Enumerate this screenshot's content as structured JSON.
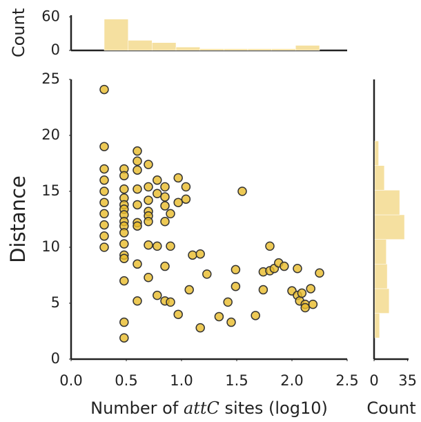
{
  "chart_data": [
    {
      "type": "histogram",
      "orientation": "vertical",
      "ylabel": "Count",
      "color": "#f5e0a0",
      "bins": [
        0.3,
        0.517,
        0.733,
        0.95,
        1.167,
        1.383,
        1.6,
        1.817,
        2.033,
        2.25
      ],
      "values": [
        56,
        18,
        14,
        6,
        3,
        3,
        3,
        3,
        9
      ],
      "xlim": [
        0,
        2.5
      ],
      "ylim": [
        0,
        63
      ],
      "yticks": [
        0,
        60
      ]
    },
    {
      "type": "scatter",
      "xlabel_parts": [
        "Number of ",
        "attC",
        " sites (log10)"
      ],
      "ylabel": "Distance",
      "color": "#e8bc2a",
      "edgecolor": "#333333",
      "x": [
        0.3,
        0.3,
        0.3,
        0.3,
        0.3,
        0.3,
        0.3,
        0.3,
        0.3,
        0.3,
        0.48,
        0.48,
        0.48,
        0.48,
        0.48,
        0.48,
        0.48,
        0.48,
        0.48,
        0.48,
        0.48,
        0.48,
        0.48,
        0.48,
        0.48,
        0.48,
        0.6,
        0.6,
        0.6,
        0.6,
        0.6,
        0.6,
        0.6,
        0.6,
        0.6,
        0.7,
        0.7,
        0.7,
        0.7,
        0.7,
        0.7,
        0.7,
        0.7,
        0.78,
        0.78,
        0.78,
        0.78,
        0.85,
        0.85,
        0.85,
        0.85,
        0.85,
        0.85,
        0.9,
        0.9,
        0.9,
        0.97,
        0.97,
        0.97,
        1.04,
        1.04,
        1.07,
        1.1,
        1.17,
        1.17,
        1.23,
        1.34,
        1.42,
        1.45,
        1.49,
        1.49,
        1.55,
        1.67,
        1.74,
        1.74,
        1.8,
        1.8,
        1.84,
        1.88,
        1.93,
        2.0,
        2.05,
        2.05,
        2.07,
        2.09,
        2.12,
        2.12,
        2.17,
        2.19,
        2.25
      ],
      "values": [
        24.1,
        19,
        17,
        16,
        15,
        14,
        13,
        12,
        11,
        10,
        17,
        16.4,
        15.2,
        14.4,
        13.8,
        13.4,
        12.9,
        12.3,
        11.9,
        11.3,
        10.3,
        9.3,
        9,
        7,
        3.3,
        1.9,
        18.6,
        17.7,
        16.9,
        15.2,
        13.8,
        12.2,
        11.9,
        8.5,
        5.2,
        17.4,
        15.4,
        14.2,
        13.2,
        12.8,
        12.3,
        10.2,
        7.3,
        16,
        14.8,
        10.1,
        5.7,
        15.4,
        14.5,
        13.7,
        12.3,
        8.3,
        5.2,
        13,
        10.1,
        5.1,
        16.2,
        14,
        4,
        15.4,
        14.3,
        6.2,
        9.3,
        9.4,
        2.8,
        7.6,
        3.8,
        5.1,
        3.3,
        8,
        6.5,
        15,
        3.9,
        7.8,
        6.2,
        10.1,
        7.9,
        8.1,
        8.6,
        8.3,
        6.1,
        8.1,
        5.7,
        5.2,
        5.9,
        4.9,
        4.6,
        6.3,
        4.9,
        7.7
      ],
      "xlim": [
        0,
        2.5
      ],
      "ylim": [
        0,
        25
      ],
      "xticks": [
        {
          "value": 0,
          "label": "0.0"
        },
        0.5,
        {
          "value": 1,
          "label": "1.0"
        },
        1.5,
        {
          "value": 2,
          "label": "2.0"
        },
        2.5
      ],
      "yticks": [
        0,
        5,
        10,
        15,
        20,
        25
      ]
    },
    {
      "type": "histogram",
      "orientation": "horizontal",
      "xlabel": "Count",
      "color": "#f5e0a0",
      "bins": [
        1.9,
        4.1,
        6.3,
        8.5,
        10.7,
        12.9,
        15.1,
        17.3,
        19.5
      ],
      "values": [
        5,
        15,
        13,
        12,
        31,
        26,
        10,
        4
      ],
      "xlim": [
        0,
        36
      ],
      "ylim": [
        0,
        25
      ],
      "xticks": [
        0,
        35
      ]
    }
  ]
}
